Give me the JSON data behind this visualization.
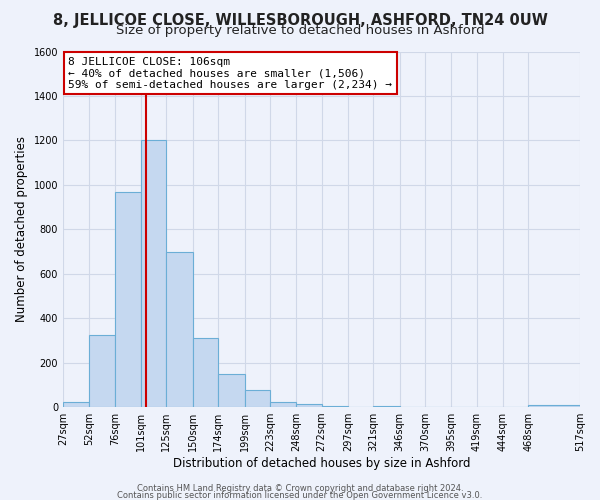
{
  "title": "8, JELLICOE CLOSE, WILLESBOROUGH, ASHFORD, TN24 0UW",
  "subtitle": "Size of property relative to detached houses in Ashford",
  "xlabel": "Distribution of detached houses by size in Ashford",
  "ylabel": "Number of detached properties",
  "bar_values": [
    25,
    325,
    970,
    1200,
    700,
    310,
    150,
    75,
    25,
    15,
    5,
    0,
    5,
    0,
    0,
    0,
    0,
    0,
    10
  ],
  "bin_edges": [
    27,
    52,
    76,
    101,
    125,
    150,
    174,
    199,
    223,
    248,
    272,
    297,
    321,
    346,
    370,
    395,
    419,
    444,
    468,
    517
  ],
  "tick_labels": [
    "27sqm",
    "52sqm",
    "76sqm",
    "101sqm",
    "125sqm",
    "150sqm",
    "174sqm",
    "199sqm",
    "223sqm",
    "248sqm",
    "272sqm",
    "297sqm",
    "321sqm",
    "346sqm",
    "370sqm",
    "395sqm",
    "419sqm",
    "444sqm",
    "468sqm",
    "517sqm"
  ],
  "bar_color": "#c5d8f0",
  "bar_edge_color": "#6baed6",
  "vline_x": 106,
  "vline_color": "#cc0000",
  "ylim": [
    0,
    1600
  ],
  "yticks": [
    0,
    200,
    400,
    600,
    800,
    1000,
    1200,
    1400,
    1600
  ],
  "annotation_line1": "8 JELLICOE CLOSE: 106sqm",
  "annotation_line2": "← 40% of detached houses are smaller (1,506)",
  "annotation_line3": "59% of semi-detached houses are larger (2,234) →",
  "annotation_box_color": "#ffffff",
  "annotation_box_edge": "#cc0000",
  "footer1": "Contains HM Land Registry data © Crown copyright and database right 2024.",
  "footer2": "Contains public sector information licensed under the Open Government Licence v3.0.",
  "bg_color": "#eef2fb",
  "grid_color": "#d0d8e8",
  "title_fontsize": 10.5,
  "subtitle_fontsize": 9.5,
  "axis_label_fontsize": 8.5,
  "tick_fontsize": 7,
  "annotation_fontsize": 8,
  "footer_fontsize": 6
}
